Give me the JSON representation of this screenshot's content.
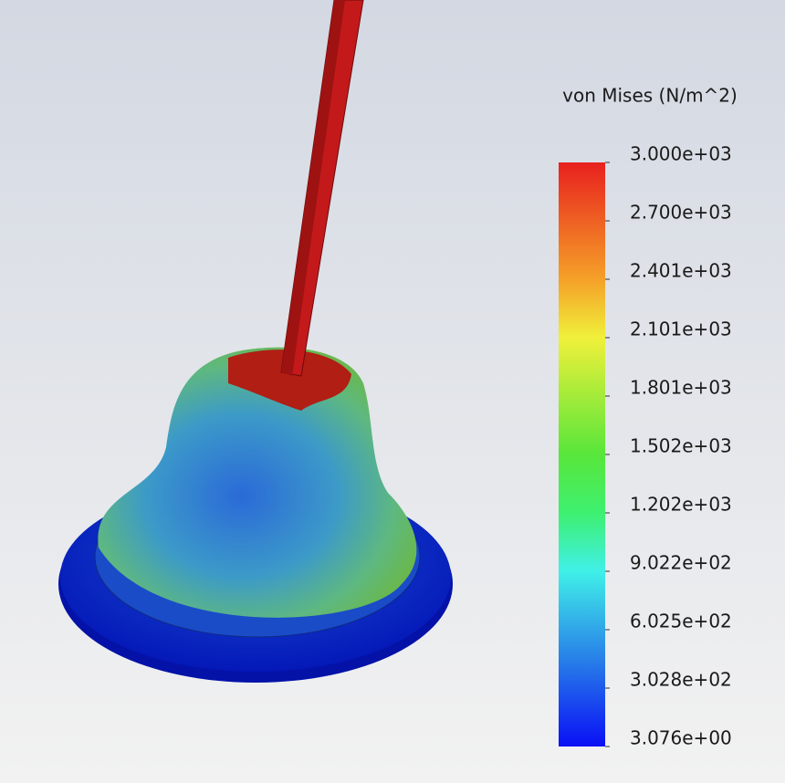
{
  "legend": {
    "title": "von Mises (N/m^2)",
    "labels": [
      "3.000e+03",
      "2.700e+03",
      "2.401e+03",
      "2.101e+03",
      "1.801e+03",
      "1.502e+03",
      "1.202e+03",
      "9.022e+02",
      "6.025e+02",
      "3.028e+02",
      "3.076e+00"
    ]
  }
}
